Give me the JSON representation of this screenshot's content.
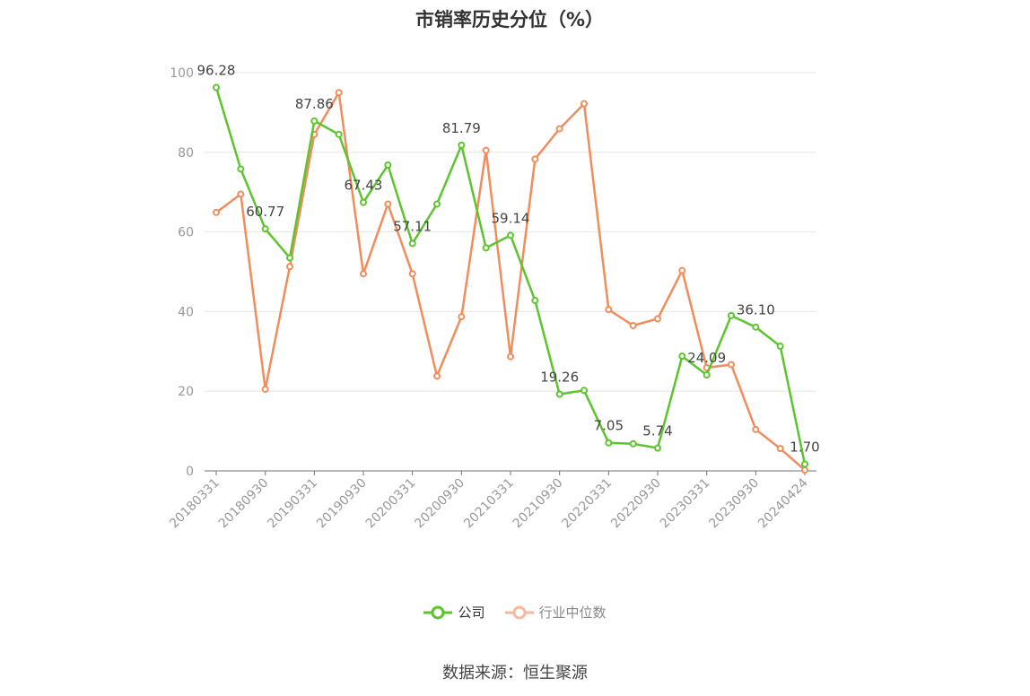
{
  "title": "市销率历史分位（%）",
  "source": "数据来源：恒生聚源",
  "colors": {
    "company": "#5cc52c",
    "industry": "#f28c5b",
    "industry_legend": "#f7b89b",
    "grid": "#e6e6e6",
    "axis": "#999999"
  },
  "chart_data": {
    "type": "line",
    "title": "市销率历史分位（%）",
    "ylim": [
      0,
      100
    ],
    "yticks": [
      0,
      20,
      40,
      60,
      80,
      100
    ],
    "grid": true,
    "legend_position": "bottom",
    "x_tick_labels": [
      "20180331",
      "20180930",
      "20190331",
      "20190930",
      "20200331",
      "20200930",
      "20210331",
      "20210930",
      "20220331",
      "20220930",
      "20230331",
      "20230930",
      "20240424"
    ],
    "x": [
      "20180331",
      "20180630",
      "20180930",
      "20181231",
      "20190331",
      "20190630",
      "20190930",
      "20191231",
      "20200331",
      "20200630",
      "20200930",
      "20201231",
      "20210331",
      "20210630",
      "20210930",
      "20211231",
      "20220331",
      "20220630",
      "20220930",
      "20221231",
      "20230331",
      "20230630",
      "20230930",
      "20231231",
      "20240424"
    ],
    "series": [
      {
        "name": "公司",
        "color": "#5cc52c",
        "values": [
          96.28,
          75.8,
          60.77,
          53.5,
          87.86,
          84.5,
          67.43,
          76.8,
          57.11,
          67.0,
          81.79,
          56.0,
          59.14,
          42.8,
          19.26,
          20.2,
          7.05,
          6.8,
          5.74,
          28.8,
          24.09,
          39.0,
          36.1,
          31.3,
          1.7
        ],
        "labels": [
          "96.28",
          null,
          "60.77",
          null,
          "87.86",
          null,
          "67.43",
          null,
          "57.11",
          null,
          "81.79",
          null,
          "59.14",
          null,
          "19.26",
          null,
          "7.05",
          null,
          "5.74",
          null,
          "24.09",
          null,
          "36.10",
          null,
          "1.70"
        ]
      },
      {
        "name": "行业中位数",
        "color": "#f28c5b",
        "values": [
          64.9,
          69.5,
          20.5,
          51.3,
          84.5,
          95.0,
          49.5,
          67.0,
          49.5,
          23.8,
          38.7,
          80.5,
          28.7,
          78.3,
          85.9,
          92.2,
          40.5,
          36.5,
          38.2,
          50.3,
          25.9,
          26.7,
          10.4,
          5.6,
          0.2
        ]
      }
    ]
  }
}
